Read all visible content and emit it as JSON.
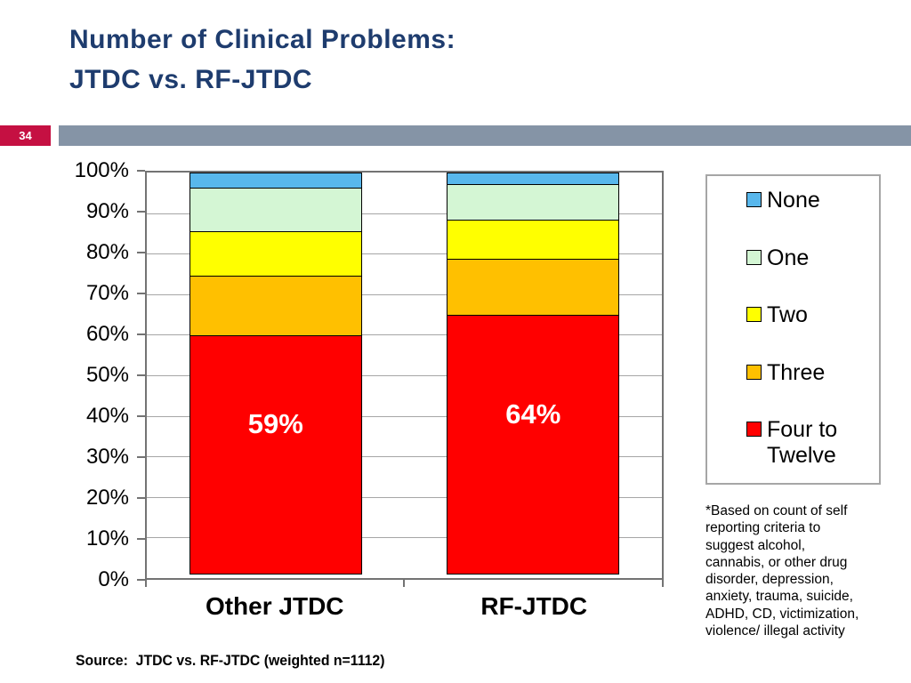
{
  "slide": {
    "title": "Number of Clinical Problems:\nJTDC vs. RF-JTDC",
    "page_number": "34",
    "footnote": "*Based on count of self\nreporting criteria to\nsuggest alcohol,\ncannabis, or other drug\ndisorder, depression,\nanxiety, trauma, suicide,\nADHD, CD, victimization,\nviolence/ illegal activity",
    "source": "Source:  JTDC vs. RF-JTDC (weighted n=1112)",
    "colors": {
      "title_text": "#1E3C6E",
      "page_badge": "#C51042",
      "header_band": "#8594A6",
      "axis_gray": "#737373",
      "gridline_gray": "#A6A6A6"
    }
  },
  "chart_data": {
    "type": "bar",
    "subtype": "stacked-100",
    "categories": [
      "Other JTDC",
      "RF-JTDC"
    ],
    "series": [
      {
        "name": "None",
        "color": "#58B7EC",
        "values": [
          4,
          3
        ]
      },
      {
        "name": "One",
        "color": "#D4F6D4",
        "values": [
          11,
          9
        ]
      },
      {
        "name": "Two",
        "color": "#FFFF00",
        "values": [
          11,
          10
        ]
      },
      {
        "name": "Three",
        "color": "#FFC000",
        "values": [
          15,
          14
        ]
      },
      {
        "name": "Four to Twelve",
        "color": "#FF0000",
        "values": [
          59,
          64
        ]
      }
    ],
    "bar_labels": [
      "59%",
      "64%"
    ],
    "y_ticks": [
      "100%",
      "90%",
      "80%",
      "70%",
      "60%",
      "50%",
      "40%",
      "30%",
      "20%",
      "10%",
      "0%"
    ],
    "ylim": [
      0,
      100
    ],
    "grid": true,
    "legend_position": "right"
  }
}
